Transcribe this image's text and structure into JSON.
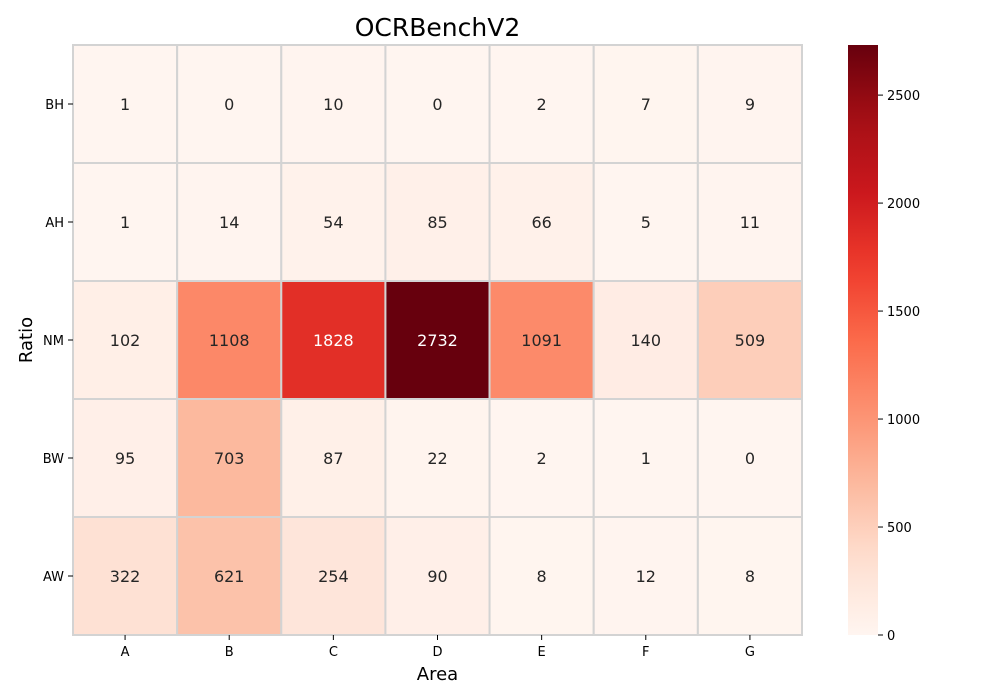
{
  "chart_data": {
    "type": "heatmap",
    "title": "OCRBenchV2",
    "xlabel": "Area",
    "ylabel": "Ratio",
    "x_categories": [
      "A",
      "B",
      "C",
      "D",
      "E",
      "F",
      "G"
    ],
    "y_categories": [
      "BH",
      "AH",
      "NM",
      "BW",
      "AW"
    ],
    "values": [
      [
        1,
        0,
        10,
        0,
        2,
        7,
        9
      ],
      [
        1,
        14,
        54,
        85,
        66,
        5,
        11
      ],
      [
        102,
        1108,
        1828,
        2732,
        1091,
        140,
        509
      ],
      [
        95,
        703,
        87,
        22,
        2,
        1,
        0
      ],
      [
        322,
        621,
        254,
        90,
        8,
        12,
        8
      ]
    ],
    "colormap": "Reds",
    "color_range": [
      0,
      2732
    ],
    "colorbar_ticks": [
      0,
      500,
      1000,
      1500,
      2000,
      2500
    ],
    "grid_color": "#d3d3d3"
  }
}
